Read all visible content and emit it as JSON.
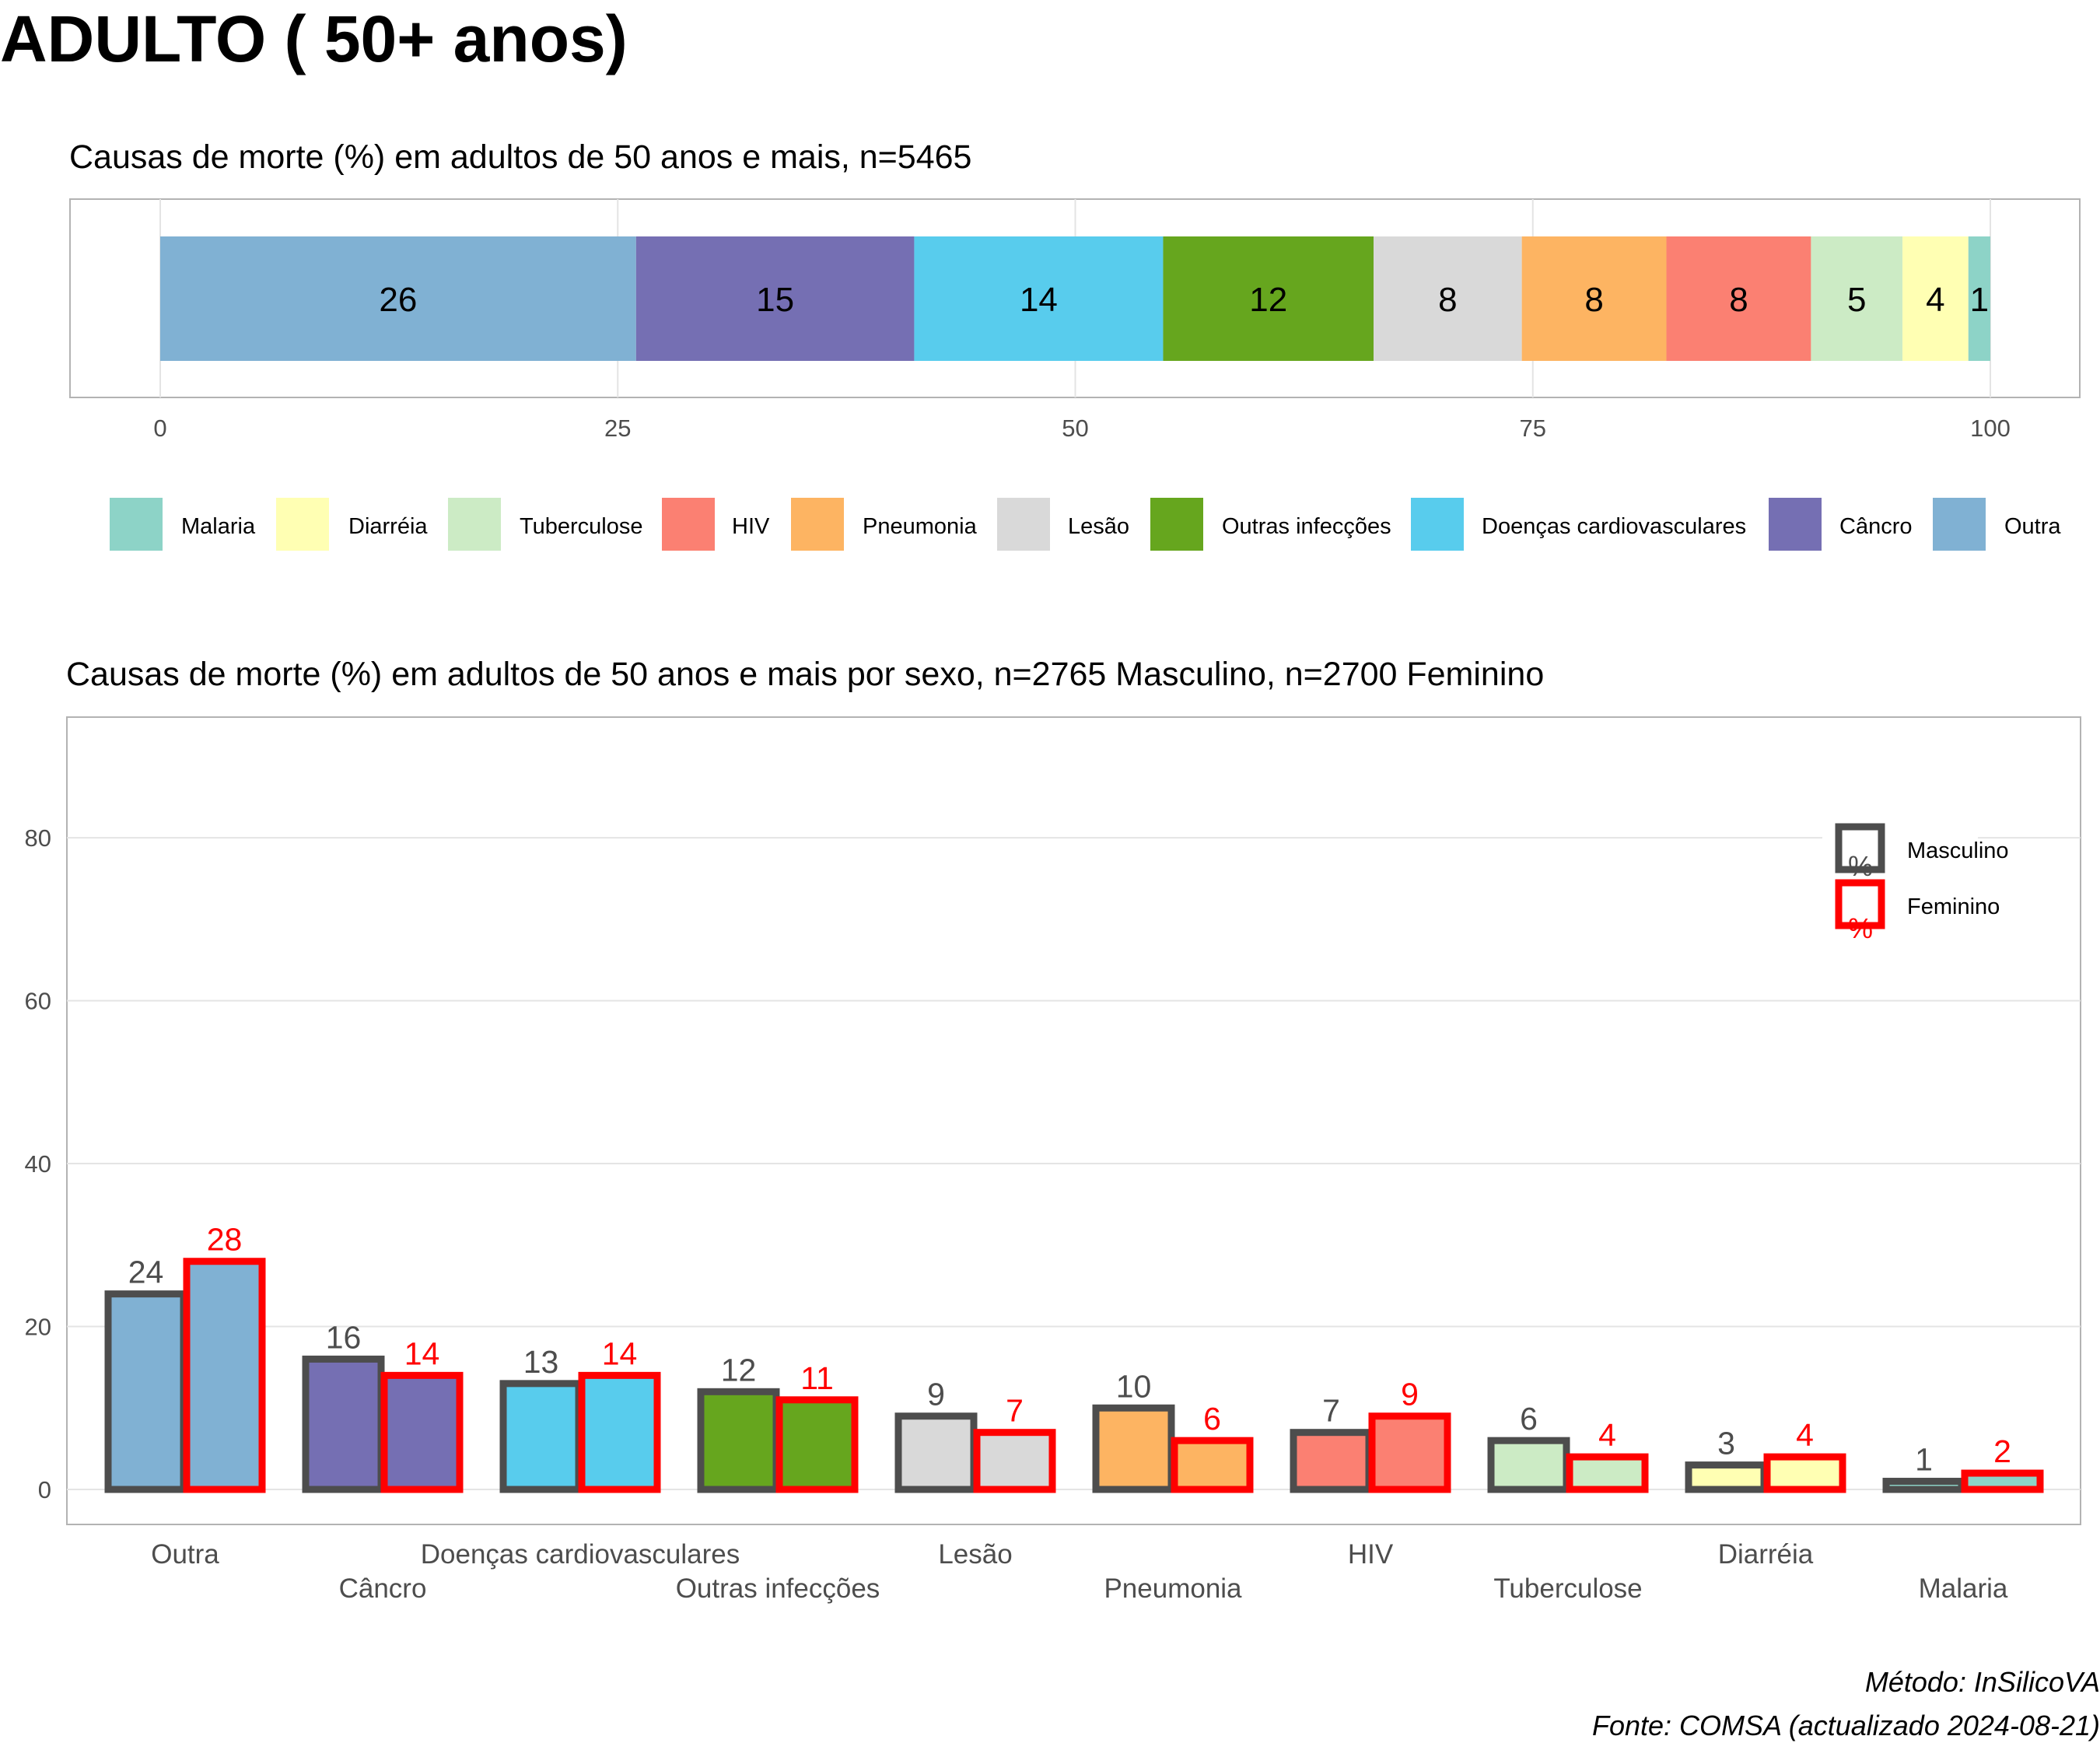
{
  "page_title": "ADULTO ( 50+ anos)",
  "colors": {
    "Outra": "#80b1d3",
    "Câncro": "#756fb3",
    "Doenças cardiovasculares": "#58cced",
    "Outras infecções": "#66a61e",
    "Lesão": "#d9d9d9",
    "Pneumonia": "#fdb462",
    "HIV": "#fb8072",
    "Tuberculose": "#ccebc5",
    "Diarréia": "#ffffb3",
    "Malaria": "#8dd3c7",
    "masculino_outline": "#4d4d4d",
    "feminino_outline": "#ff0000"
  },
  "chart_data": [
    {
      "type": "bar",
      "orientation": "horizontal-stacked",
      "title": "Causas de morte (%) em adultos de 50 anos e mais, n=5465",
      "categories": [
        "Outra",
        "Câncro",
        "Doenças cardiovasculares",
        "Outras infecções",
        "Lesão",
        "Pneumonia",
        "HIV",
        "Tuberculose",
        "Diarréia",
        "Malaria"
      ],
      "values": [
        26,
        15.2,
        13.6,
        11.5,
        8.1,
        7.9,
        7.9,
        5,
        3.6,
        1.2
      ],
      "labels": [
        "26",
        "15",
        "14",
        "12",
        "8",
        "8",
        "8",
        "5",
        "4",
        "1"
      ],
      "xlim": [
        0,
        100
      ],
      "xticks": [
        "0",
        "25",
        "50",
        "75",
        "100"
      ],
      "legend": [
        "Malaria",
        "Diarréia",
        "Tuberculose",
        "HIV",
        "Pneumonia",
        "Lesão",
        "Outras infecções",
        "Doenças cardiovasculares",
        "Câncro",
        "Outra"
      ],
      "legend_position": "bottom",
      "grid": true
    },
    {
      "type": "bar",
      "title": "Causas de morte (%) em adultos de 50 anos e mais por sexo, n=2765 Masculino, n=2700 Feminino",
      "categories": [
        "Outra",
        "Câncro",
        "Doenças cardiovasculares",
        "Outras infecções",
        "Lesão",
        "Pneumonia",
        "HIV",
        "Tuberculose",
        "Diarréia",
        "Malaria"
      ],
      "series": [
        {
          "name": "Masculino",
          "values": [
            24,
            16,
            13,
            12,
            9,
            10,
            7,
            6,
            3,
            1
          ],
          "labels": [
            "24",
            "16",
            "13",
            "12",
            "9",
            "10",
            "7",
            "6",
            "3",
            "1"
          ]
        },
        {
          "name": "Feminino",
          "values": [
            28,
            14,
            14,
            11,
            7,
            6,
            9,
            4,
            4,
            2
          ],
          "labels": [
            "28",
            "14",
            "14",
            "11",
            "7",
            "6",
            "9",
            "4",
            "4",
            "2"
          ]
        }
      ],
      "ylim": [
        0,
        95
      ],
      "yticks": [
        "0",
        "20",
        "40",
        "60",
        "80"
      ],
      "legend_glyph": "%",
      "legend_position": "top-right",
      "grid": true
    }
  ],
  "caption": {
    "method": "Método: InSilicoVA",
    "source": "Fonte: COMSA (actualizado 2024-08-21)"
  }
}
